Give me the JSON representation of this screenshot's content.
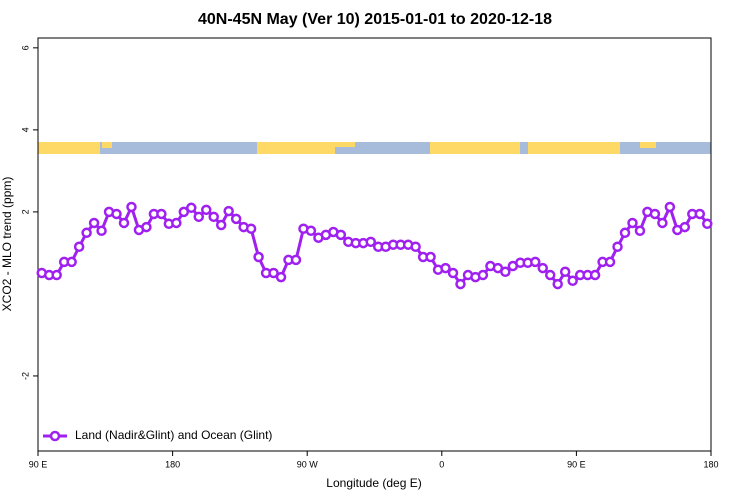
{
  "chart_data": {
    "type": "line",
    "title": "40N-45N May (Ver 10)   2015-01-01 to 2020-12-18",
    "x_label": "Longitude (deg E)",
    "y_label": "XCO2 - MLO trend (ppm)",
    "xlim": [
      90,
      540
    ],
    "xticks": [
      {
        "value": 90,
        "label": "90 E"
      },
      180,
      {
        "value": 270,
        "label": "90 W"
      },
      {
        "value": 360,
        "label": "0"
      },
      {
        "value": 450,
        "label": "90 E"
      },
      {
        "value": 540,
        "label": "180"
      }
    ],
    "ylim": [
      -3.83,
      6.24
    ],
    "yticks": [
      -2,
      2,
      4,
      6
    ],
    "legend": "bottom-left",
    "x": [
      92.5,
      97.5,
      102.5,
      107.5,
      112.5,
      117.5,
      122.5,
      127.5,
      132.5,
      137.5,
      142.5,
      147.5,
      152.5,
      157.5,
      162.5,
      167.5,
      172.5,
      177.5,
      182.5,
      187.5,
      192.5,
      197.5,
      202.5,
      207.5,
      212.5,
      217.5,
      222.5,
      227.5,
      232.5,
      237.5,
      242.5,
      247.5,
      252.5,
      257.5,
      262.5,
      267.5,
      272.5,
      277.5,
      282.5,
      287.5,
      292.5,
      297.5,
      302.5,
      307.5,
      312.5,
      317.5,
      322.5,
      327.5,
      332.5,
      337.5,
      342.5,
      347.5,
      352.5,
      357.5,
      362.5,
      367.5,
      372.5,
      377.5,
      382.5,
      387.5,
      392.5,
      397.5,
      402.5,
      407.5,
      412.5,
      417.5,
      422.5,
      427.5,
      432.5,
      437.5,
      442.5,
      447.5,
      452.5,
      457.5,
      462.5,
      467.5,
      472.5,
      477.5,
      482.5,
      487.5,
      492.5,
      497.5,
      502.5,
      507.5,
      512.5,
      517.5,
      522.5,
      527.5,
      532.5,
      537.5
    ],
    "series": [
      {
        "name": "Land (Nadir&Glint) and Ocean (Glint)",
        "color": "#a020f0",
        "values": [
          0.51,
          0.46,
          0.46,
          0.78,
          0.78,
          1.15,
          1.49,
          1.73,
          1.54,
          2.0,
          1.95,
          1.73,
          2.12,
          1.56,
          1.63,
          1.95,
          1.95,
          1.71,
          1.73,
          2.0,
          2.1,
          1.88,
          2.05,
          1.88,
          1.68,
          2.02,
          1.83,
          1.63,
          1.59,
          0.9,
          0.51,
          0.51,
          0.41,
          0.83,
          0.83,
          1.59,
          1.54,
          1.37,
          1.44,
          1.51,
          1.44,
          1.27,
          1.24,
          1.24,
          1.27,
          1.15,
          1.15,
          1.2,
          1.2,
          1.2,
          1.15,
          0.9,
          0.9,
          0.59,
          0.63,
          0.51,
          0.24,
          0.46,
          0.41,
          0.46,
          0.68,
          0.63,
          0.54,
          0.68,
          0.76,
          0.76,
          0.78,
          0.63,
          0.46,
          0.24,
          0.54,
          0.32,
          0.46,
          0.46,
          0.46,
          0.78,
          0.78,
          1.15,
          1.49,
          1.73,
          1.54,
          2.0,
          1.95,
          1.73,
          2.12,
          1.56,
          1.63,
          1.95,
          1.95,
          1.71
        ]
      }
    ]
  }
}
